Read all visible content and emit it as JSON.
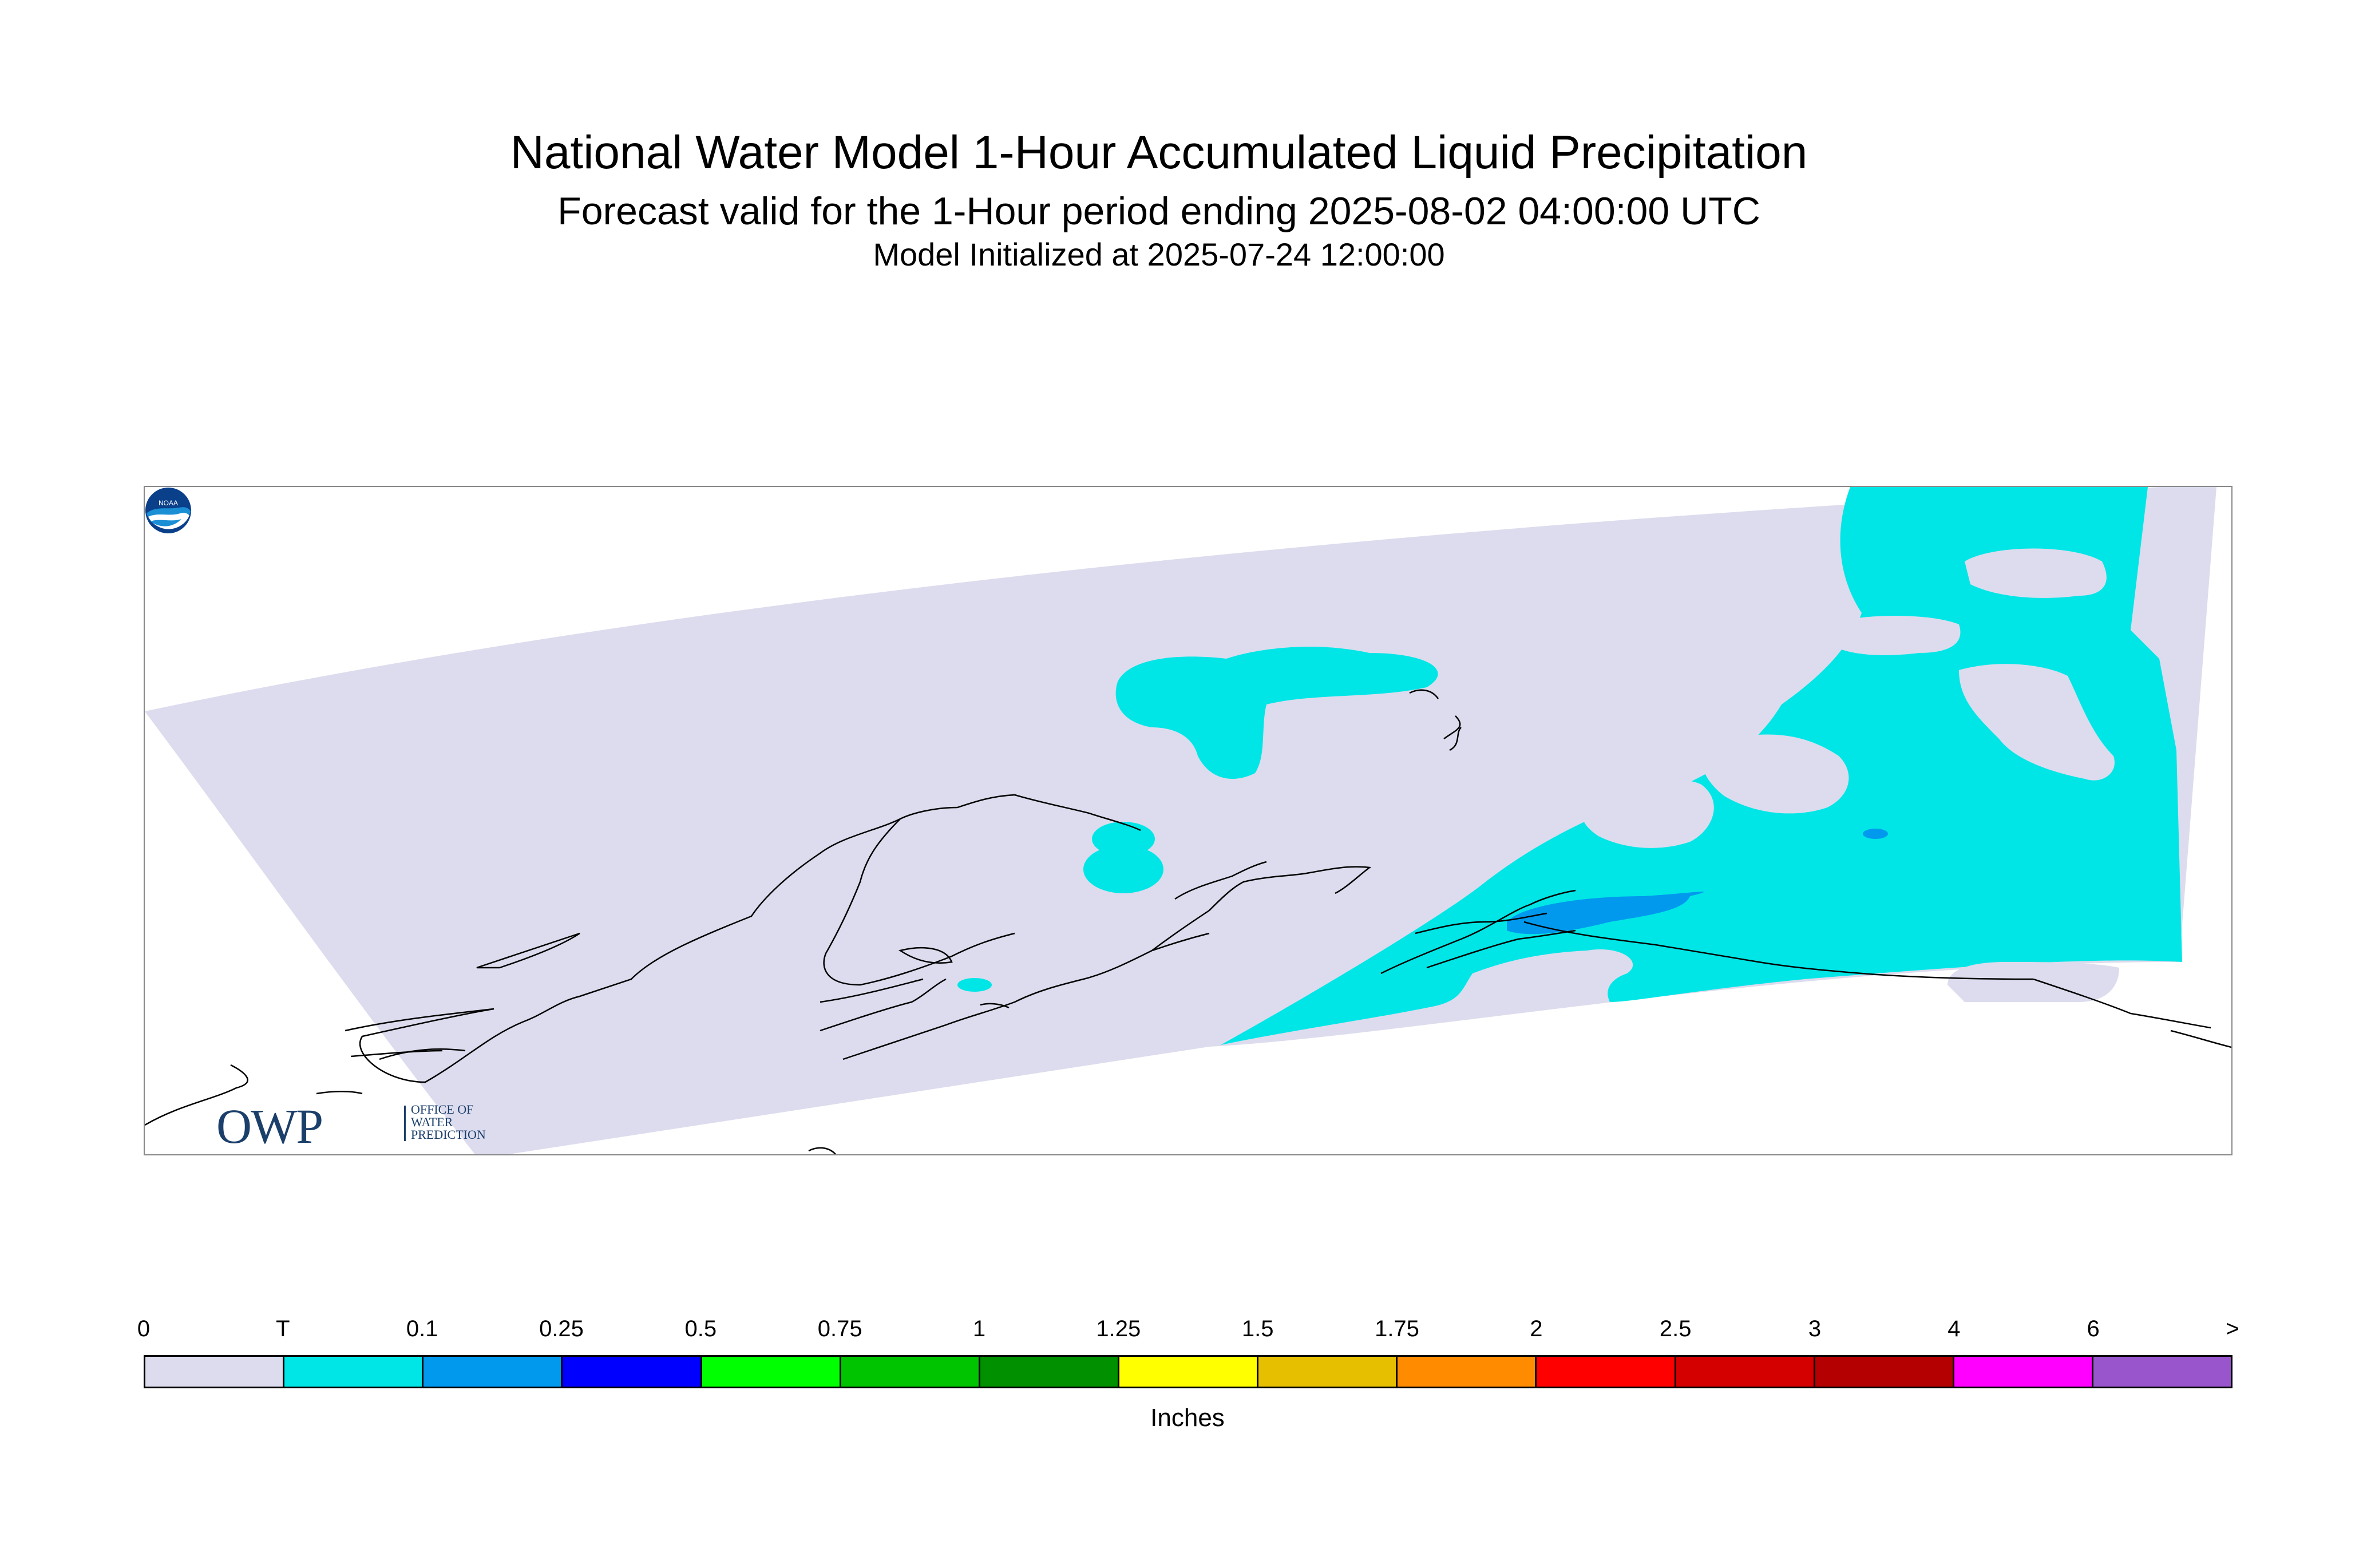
{
  "title": "National Water Model 1-Hour Accumulated Liquid Precipitation",
  "subtitle": "Forecast valid for the 1-Hour period ending 2025-08-02 04:00:00 UTC",
  "init_line": "Model Initialized at 2025-07-24 12:00:00",
  "map": {
    "region": "Alaska (south-central)",
    "background_color": "#dcdcee",
    "trace_color": "#00e6e6",
    "light_color": "#0099ee",
    "coastline_color": "#000000"
  },
  "logos": {
    "owp_big": "OWP",
    "owp_small": [
      "OFFICE OF",
      "WATER",
      "PREDICTION"
    ],
    "noaa_icon": "noaa-logo"
  },
  "colorbar": {
    "labels": [
      "0",
      "T",
      "0.1",
      "0.25",
      "0.5",
      "0.75",
      "1",
      "1.25",
      "1.5",
      "1.75",
      "2",
      "2.5",
      "3",
      "4",
      "6",
      ">"
    ],
    "colors": [
      "#dcdcee",
      "#00e6e6",
      "#0099ee",
      "#0000ff",
      "#00ff00",
      "#00c400",
      "#009000",
      "#ffff00",
      "#e6c000",
      "#ff8c00",
      "#ff0000",
      "#d40000",
      "#b40000",
      "#ff00ff",
      "#9955cc"
    ],
    "units": "Inches"
  }
}
